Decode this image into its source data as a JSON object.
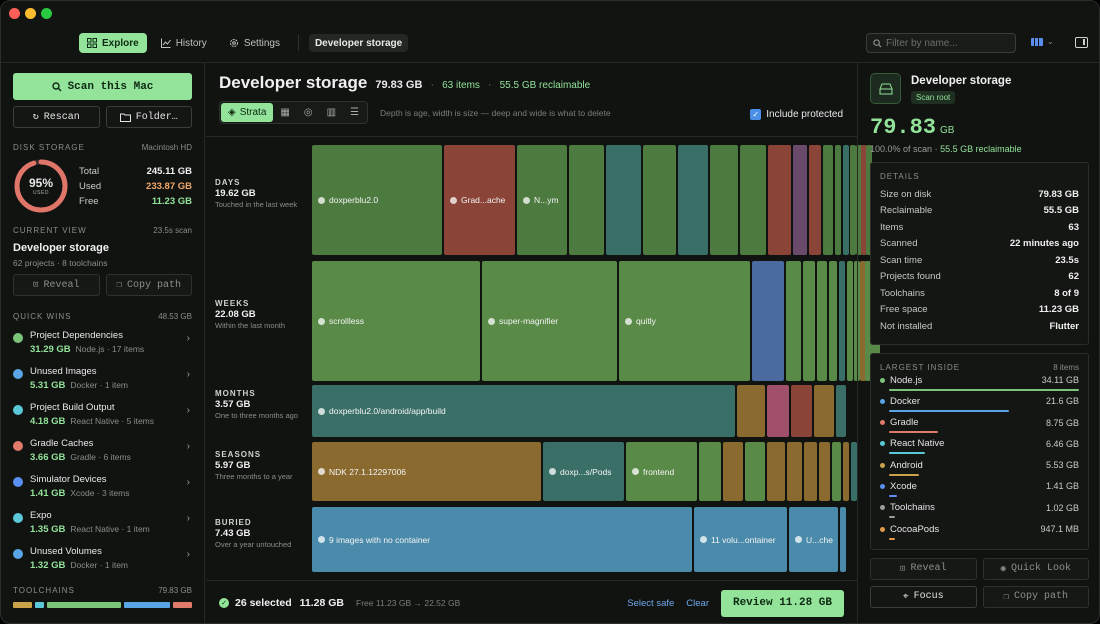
{
  "nav": {
    "tabs": [
      {
        "label": "Explore"
      },
      {
        "label": "History"
      },
      {
        "label": "Settings"
      }
    ],
    "breadcrumb": "Developer storage",
    "search_placeholder": "Filter by name..."
  },
  "sidebar": {
    "scan_button": "Scan this Mac",
    "rescan": "Rescan",
    "folder": "Folder…",
    "disk_section": "Disk storage",
    "disk_name": "Macintosh HD",
    "disk_percent": "95%",
    "disk_used_label": "USED",
    "disk_used_fraction": 0.95,
    "disk_rows": [
      {
        "label": "Total",
        "value": "245.11 GB",
        "color": "#f0f0f0"
      },
      {
        "label": "Used",
        "value": "233.87 GB",
        "color": "#f0a86a"
      },
      {
        "label": "Free",
        "value": "11.23 GB",
        "color": "#93e39a"
      }
    ],
    "current_view_section": "Current view",
    "current_view_time": "23.5s scan",
    "current_view_title": "Developer storage",
    "current_view_sub": "62 projects · 8 toolchains",
    "reveal": "Reveal",
    "copy_path": "Copy path",
    "quick_wins_section": "Quick wins",
    "quick_wins_total": "48.53 GB",
    "quick_wins": [
      {
        "title": "Project Dependencies",
        "size": "31.29 GB",
        "meta": "Node.js · 17 items",
        "icon": "hexagon-icon",
        "color": "#7cc47a"
      },
      {
        "title": "Unused Images",
        "size": "5.31 GB",
        "meta": "Docker · 1 item",
        "icon": "cube-icon",
        "color": "#5aa5e6"
      },
      {
        "title": "Project Build Output",
        "size": "4.18 GB",
        "meta": "React Native · 5 items",
        "icon": "atom-icon",
        "color": "#5ac8d8"
      },
      {
        "title": "Gradle Caches",
        "size": "3.66 GB",
        "meta": "Gradle · 6 items",
        "icon": "gradle-icon",
        "color": "#e07a6a"
      },
      {
        "title": "Simulator Devices",
        "size": "1.41 GB",
        "meta": "Xcode · 3 items",
        "icon": "hammer-icon",
        "color": "#5a8ef0"
      },
      {
        "title": "Expo",
        "size": "1.35 GB",
        "meta": "React Native · 1 item",
        "icon": "atom-icon",
        "color": "#5ac8d8"
      },
      {
        "title": "Unused Volumes",
        "size": "1.32 GB",
        "meta": "Docker · 1 item",
        "icon": "cube-icon",
        "color": "#5aa5e6"
      }
    ],
    "toolchains_section": "Toolchains",
    "toolchains_total": "79.83 GB"
  },
  "main": {
    "title": "Developer storage",
    "size": "79.83 GB",
    "items": "63 items",
    "reclaimable": "55.5 GB reclaimable",
    "view_modes": [
      "Strata",
      "grid",
      "sunburst",
      "bars",
      "list"
    ],
    "hint": "Depth is age, width is size — deep and wide is what to delete",
    "include_protected": "Include protected",
    "rows": [
      {
        "name": "DAYS",
        "size": "19.62 GB",
        "desc": "Touched in the last week"
      },
      {
        "name": "WEEKS",
        "size": "22.08 GB",
        "desc": "Within the last month"
      },
      {
        "name": "MONTHS",
        "size": "3.57 GB",
        "desc": "One to three months ago"
      },
      {
        "name": "SEASONS",
        "size": "5.97 GB",
        "desc": "Three months to a year"
      },
      {
        "name": "BURIED",
        "size": "7.43 GB",
        "desc": "Over a year untouched"
      }
    ],
    "cells": {
      "days": [
        "doxperblu2.0",
        "Grad...ache",
        "N...ym"
      ],
      "weeks": [
        "scrollless",
        "super-magnifier",
        "quitly"
      ],
      "months": [
        "doxperblu2.0/android/app/build"
      ],
      "seasons": [
        "NDK 27.1.12297006",
        "doxp...s/Pods",
        "frontend"
      ],
      "buried": [
        "9 images with no container",
        "11 volu...ontainer",
        "U...che"
      ]
    },
    "footer": {
      "selected": "26 selected",
      "selected_size": "11.28 GB",
      "free_change": "Free 11.23 GB → 22.52 GB",
      "select_safe": "Select safe",
      "clear": "Clear",
      "review": "Review 11.28 GB"
    }
  },
  "inspector": {
    "title": "Developer storage",
    "badge": "Scan root",
    "big_value": "79.83",
    "big_unit": "GB",
    "pct": "100.0% of scan",
    "reclaim": "55.5 GB reclaimable",
    "details_section": "Details",
    "details": [
      {
        "label": "Size on disk",
        "value": "79.83 GB"
      },
      {
        "label": "Reclaimable",
        "value": "55.5 GB"
      },
      {
        "label": "Items",
        "value": "63"
      },
      {
        "label": "Scanned",
        "value": "22 minutes ago"
      },
      {
        "label": "Scan time",
        "value": "23.5s"
      },
      {
        "label": "Projects found",
        "value": "62"
      },
      {
        "label": "Toolchains",
        "value": "8 of 9"
      },
      {
        "label": "Free space",
        "value": "11.23 GB"
      },
      {
        "label": "Not installed",
        "value": "Flutter"
      }
    ],
    "largest_section": "Largest inside",
    "largest_count": "8 items",
    "largest": [
      {
        "label": "Node.js",
        "value": "34.11 GB",
        "color": "#7cc47a",
        "fraction": 1.0
      },
      {
        "label": "Docker",
        "value": "21.6 GB",
        "color": "#5aa5e6",
        "fraction": 0.63
      },
      {
        "label": "Gradle",
        "value": "8.75 GB",
        "color": "#e07a6a",
        "fraction": 0.26
      },
      {
        "label": "React Native",
        "value": "6.46 GB",
        "color": "#5ac8d8",
        "fraction": 0.19
      },
      {
        "label": "Android",
        "value": "5.53 GB",
        "color": "#c9a24a",
        "fraction": 0.16
      },
      {
        "label": "Xcode",
        "value": "1.41 GB",
        "color": "#5a8ef0",
        "fraction": 0.04
      },
      {
        "label": "Toolchains",
        "value": "1.02 GB",
        "color": "#9a9e9a",
        "fraction": 0.03
      },
      {
        "label": "CocoaPods",
        "value": "947.1 MB",
        "color": "#e09a4a",
        "fraction": 0.03
      }
    ],
    "reveal": "Reveal",
    "quick_look": "Quick Look",
    "focus": "Focus",
    "copy_path": "Copy path"
  }
}
